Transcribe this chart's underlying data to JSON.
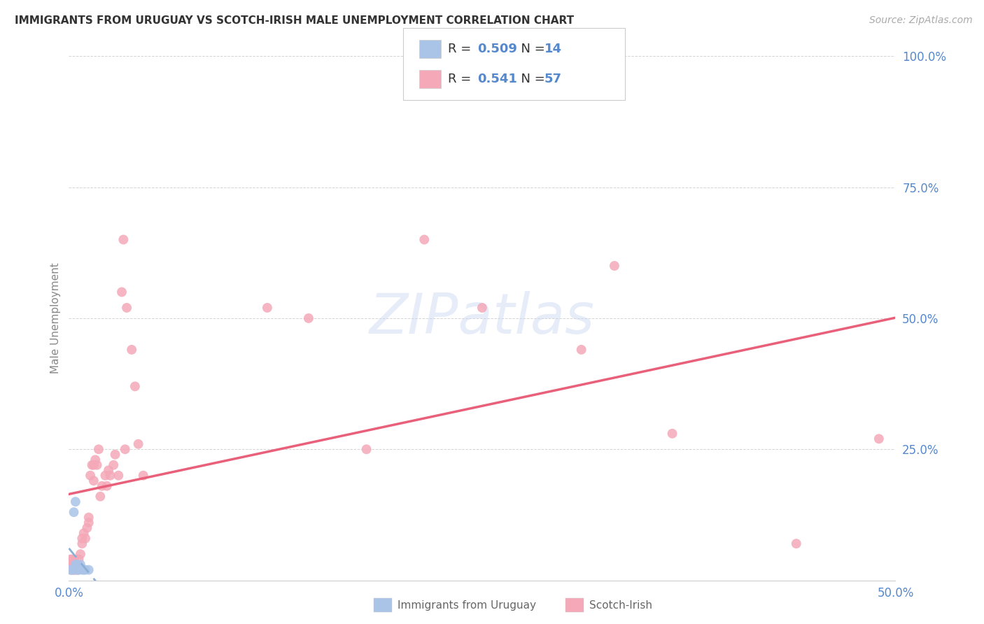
{
  "title": "IMMIGRANTS FROM URUGUAY VS SCOTCH-IRISH MALE UNEMPLOYMENT CORRELATION CHART",
  "source": "Source: ZipAtlas.com",
  "ylabel": "Male Unemployment",
  "xlim": [
    0.0,
    0.5
  ],
  "ylim": [
    0.0,
    1.0
  ],
  "xtick_vals": [
    0.0,
    0.1,
    0.2,
    0.3,
    0.4,
    0.5
  ],
  "xtick_labels": [
    "0.0%",
    "",
    "",
    "",
    "",
    "50.0%"
  ],
  "ytick_vals": [
    0.0,
    0.25,
    0.5,
    0.75,
    1.0
  ],
  "ytick_labels": [
    "",
    "25.0%",
    "50.0%",
    "75.0%",
    "100.0%"
  ],
  "blue_R": 0.509,
  "blue_N": 14,
  "pink_R": 0.541,
  "pink_N": 57,
  "blue_color": "#aac4e8",
  "pink_color": "#f4a8b8",
  "blue_line_color": "#8aaed4",
  "pink_line_color": "#e8607a",
  "grid_color": "#d0d0d0",
  "label_color": "#5588cc",
  "blue_scatter_x": [
    0.001,
    0.002,
    0.003,
    0.003,
    0.004,
    0.004,
    0.005,
    0.005,
    0.006,
    0.007,
    0.008,
    0.009,
    0.01,
    0.012
  ],
  "blue_scatter_y": [
    0.02,
    0.02,
    0.02,
    0.13,
    0.03,
    0.15,
    0.02,
    0.03,
    0.02,
    0.03,
    0.02,
    0.02,
    0.02,
    0.02
  ],
  "pink_scatter_x": [
    0.001,
    0.001,
    0.001,
    0.002,
    0.002,
    0.002,
    0.003,
    0.003,
    0.003,
    0.004,
    0.004,
    0.005,
    0.005,
    0.006,
    0.006,
    0.007,
    0.008,
    0.008,
    0.009,
    0.01,
    0.011,
    0.012,
    0.012,
    0.013,
    0.014,
    0.015,
    0.015,
    0.016,
    0.017,
    0.018,
    0.019,
    0.02,
    0.022,
    0.023,
    0.024,
    0.025,
    0.027,
    0.028,
    0.03,
    0.032,
    0.033,
    0.034,
    0.035,
    0.038,
    0.04,
    0.042,
    0.045,
    0.12,
    0.145,
    0.18,
    0.215,
    0.25,
    0.31,
    0.33,
    0.365,
    0.44,
    0.49
  ],
  "pink_scatter_y": [
    0.02,
    0.03,
    0.04,
    0.02,
    0.03,
    0.04,
    0.02,
    0.03,
    0.04,
    0.02,
    0.03,
    0.02,
    0.03,
    0.02,
    0.04,
    0.05,
    0.07,
    0.08,
    0.09,
    0.08,
    0.1,
    0.11,
    0.12,
    0.2,
    0.22,
    0.19,
    0.22,
    0.23,
    0.22,
    0.25,
    0.16,
    0.18,
    0.2,
    0.18,
    0.21,
    0.2,
    0.22,
    0.24,
    0.2,
    0.55,
    0.65,
    0.25,
    0.52,
    0.44,
    0.37,
    0.26,
    0.2,
    0.52,
    0.5,
    0.25,
    0.65,
    0.52,
    0.44,
    0.6,
    0.28,
    0.07,
    0.27
  ],
  "marker_size": 100
}
